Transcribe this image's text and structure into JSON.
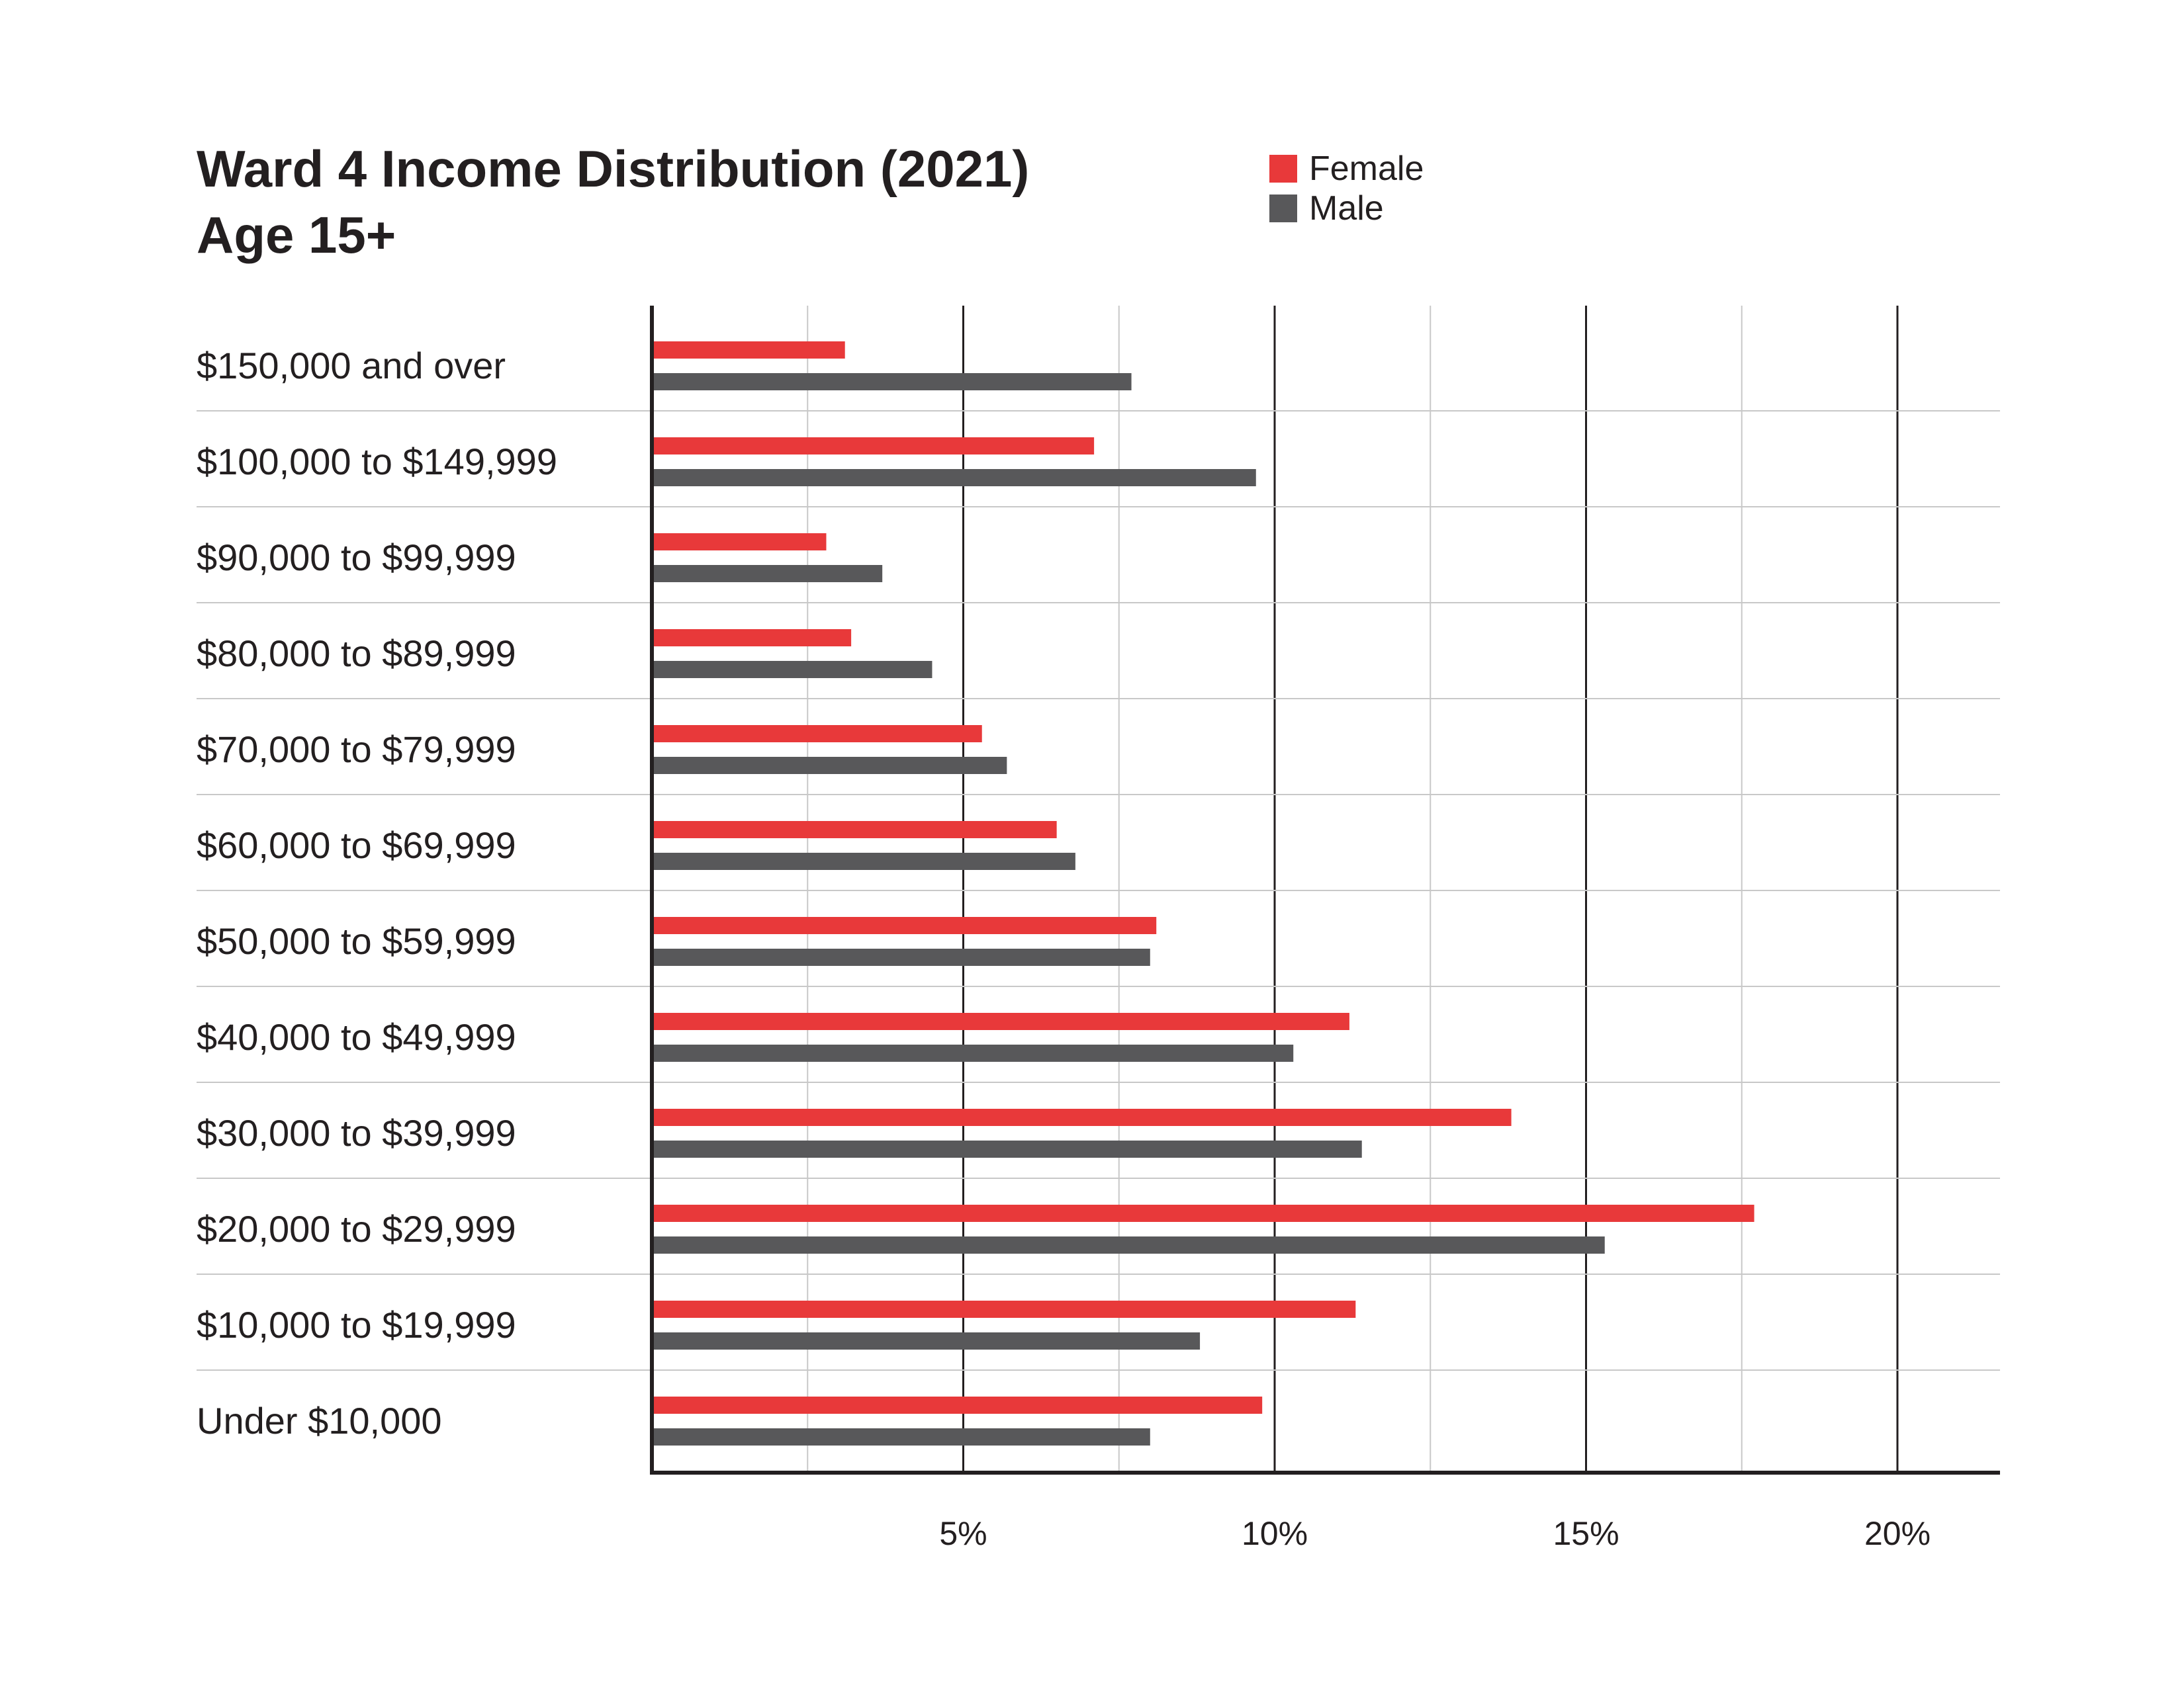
{
  "chart_data": {
    "type": "bar",
    "orientation": "horizontal",
    "title": "Ward 4 Income Distribution (2021)",
    "subtitle": "Age 15+",
    "categories": [
      "$150,000 and over",
      "$100,000 to $149,999",
      "$90,000 to $99,999",
      "$80,000 to $89,999",
      "$70,000 to $79,999",
      "$60,000 to $69,999",
      "$50,000 to $59,999",
      "$40,000 to $49,999",
      "$30,000 to $39,999",
      "$20,000 to $29,999",
      "$10,000 to $19,999",
      "Under $10,000"
    ],
    "series": [
      {
        "name": "Female",
        "color": "#e8393a",
        "values": [
          3.1,
          7.1,
          2.8,
          3.2,
          5.3,
          6.5,
          8.1,
          11.2,
          13.8,
          17.7,
          11.3,
          9.8
        ]
      },
      {
        "name": "Male",
        "color": "#58585a",
        "values": [
          7.7,
          9.7,
          3.7,
          4.5,
          5.7,
          6.8,
          8.0,
          10.3,
          11.4,
          15.3,
          8.8,
          8.0
        ]
      }
    ],
    "x_ticks": [
      5,
      10,
      15,
      20
    ],
    "x_tick_labels": [
      "5%",
      "10%",
      "15%",
      "20%"
    ],
    "xlim": [
      0,
      21.7
    ],
    "xlabel": "",
    "ylabel": "",
    "grid": true,
    "legend_position": "top-right"
  }
}
